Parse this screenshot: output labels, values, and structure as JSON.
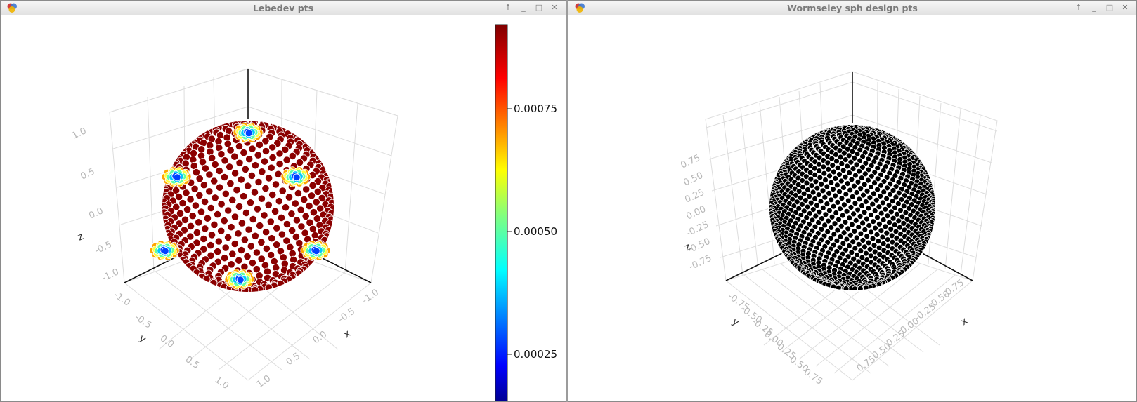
{
  "windows": [
    {
      "title": "Lebedev pts"
    },
    {
      "title": "Wormseley sph design pts"
    }
  ],
  "window_buttons": {
    "shade": "↑",
    "minimize": "_",
    "maximize": "□",
    "close": "✕"
  },
  "left_plot": {
    "ticks_z": [
      "1.0",
      "0.5",
      "0.0",
      "-0.5",
      "-1.0"
    ],
    "ticks_y": [
      "-1.0",
      "-0.5",
      "0.0",
      "0.5",
      "1.0"
    ],
    "ticks_x": [
      "-1.0",
      "-0.5",
      "0.0",
      "0.5",
      "1.0"
    ],
    "axis_labels": {
      "x": "x",
      "y": "y",
      "z": "z"
    },
    "colorbar_ticks": [
      "0.00075",
      "0.00050",
      "0.00025"
    ]
  },
  "right_plot": {
    "ticks_z": [
      "0.75",
      "0.50",
      "0.25",
      "0.00",
      "-0.25",
      "-0.50",
      "-0.75"
    ],
    "ticks_y": [
      "-0.75",
      "-0.50",
      "-0.25",
      "0.00",
      "0.25",
      "0.50",
      "0.75"
    ],
    "ticks_x": [
      "-0.75",
      "-0.50",
      "-0.25",
      "0.00",
      "0.25",
      "0.50",
      "0.75"
    ],
    "axis_labels": {
      "x": "x",
      "y": "y",
      "z": "z"
    }
  },
  "colors": {
    "title_text": "#7a7a7a",
    "grid": "#dddddd",
    "point_dark_red": "#8b0000",
    "marker_black": "#000000"
  }
}
